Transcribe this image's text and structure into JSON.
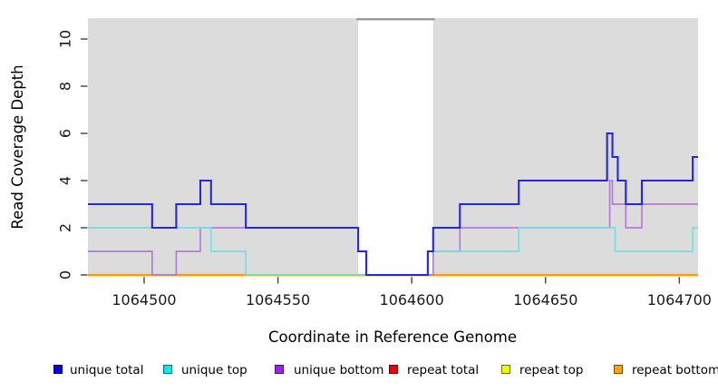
{
  "chart_data": {
    "type": "line",
    "subtype": "step-coverage",
    "title": "",
    "xlabel": "Coordinate in Reference Genome",
    "ylabel": "Read Coverage Depth",
    "xlim": [
      1064479,
      1064707
    ],
    "ylim": [
      0,
      11
    ],
    "x_ticks": [
      1064500,
      1064550,
      1064600,
      1064650,
      1064700
    ],
    "y_ticks": [
      0,
      2,
      4,
      6,
      8,
      10
    ],
    "grid": false,
    "panel_bg": "#DCDCDC",
    "uncovered_region": {
      "from": 1064580,
      "to": 1064608,
      "fill": "#FFFFFF",
      "top_border": "#999999"
    },
    "series": [
      {
        "name": "unique total",
        "color": "#2626DA",
        "legend_color": "#0000EE",
        "steps": [
          [
            1064479,
            3
          ],
          [
            1064503,
            2
          ],
          [
            1064512,
            3
          ],
          [
            1064521,
            4
          ],
          [
            1064525,
            3
          ],
          [
            1064538,
            2
          ],
          [
            1064580,
            1
          ],
          [
            1064583,
            0
          ],
          [
            1064606,
            1
          ],
          [
            1064608,
            2
          ],
          [
            1064618,
            3
          ],
          [
            1064640,
            4
          ],
          [
            1064673,
            6
          ],
          [
            1064675,
            5
          ],
          [
            1064677,
            4
          ],
          [
            1064680,
            3
          ],
          [
            1064686,
            4
          ],
          [
            1064705,
            5
          ]
        ]
      },
      {
        "name": "unique top",
        "color": "#76DEE6",
        "legend_color": "#00EEEE",
        "steps": [
          [
            1064479,
            2
          ],
          [
            1064525,
            1
          ],
          [
            1064538,
            0
          ],
          [
            1064606,
            1
          ],
          [
            1064640,
            2
          ],
          [
            1064676,
            1
          ],
          [
            1064705,
            2
          ]
        ]
      },
      {
        "name": "unique bottom",
        "color": "#B27CD8",
        "legend_color": "#A020F0",
        "steps": [
          [
            1064479,
            1
          ],
          [
            1064503,
            0
          ],
          [
            1064512,
            1
          ],
          [
            1064521,
            2
          ],
          [
            1064580,
            1
          ],
          [
            1064583,
            0
          ],
          [
            1064608,
            1
          ],
          [
            1064618,
            2
          ],
          [
            1064674,
            4
          ],
          [
            1064675,
            3
          ],
          [
            1064680,
            2
          ],
          [
            1064686,
            3
          ]
        ]
      },
      {
        "name": "repeat total",
        "color": "#CC2222",
        "legend_color": "#EE0000",
        "steps": [
          [
            1064479,
            0
          ]
        ]
      },
      {
        "name": "repeat top",
        "color": "#EFE8A8",
        "legend_color": "#F5F500",
        "steps": [
          [
            1064479,
            0
          ]
        ]
      },
      {
        "name": "repeat bottom",
        "color": "#FF9914",
        "legend_color": "#FFA500",
        "steps": [
          [
            1064479,
            0
          ]
        ]
      }
    ],
    "zero_line_overlays": [
      {
        "name": "repeat-bottom-left",
        "color": "#FF9914",
        "from": 1064479,
        "to": 1064538,
        "width": 2.2
      },
      {
        "name": "unique-top-repeat-top-blend",
        "color": "#8FCF9B",
        "from": 1064538,
        "to": 1064583,
        "width": 1.7
      },
      {
        "name": "repeat-bottom-right",
        "color": "#FF9914",
        "from": 1064606,
        "to": 1064707,
        "width": 2.2
      }
    ],
    "legend": [
      {
        "label": "unique total"
      },
      {
        "label": "unique top"
      },
      {
        "label": "unique bottom"
      },
      {
        "label": "repeat total"
      },
      {
        "label": "repeat top"
      },
      {
        "label": "repeat bottom"
      }
    ]
  }
}
